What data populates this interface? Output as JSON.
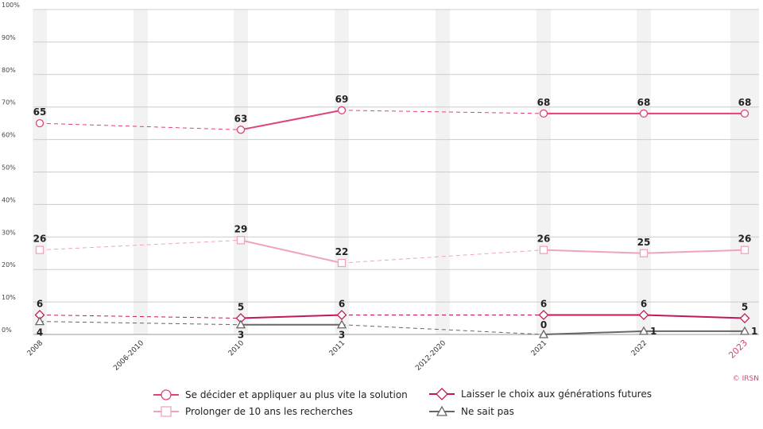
{
  "chart_data": {
    "type": "line",
    "categories": [
      "2008",
      "2006-2010",
      "2010",
      "2011",
      "2012-2020",
      "2021",
      "2022",
      "2023"
    ],
    "highlighted_category": "2023",
    "ylim": [
      0,
      100
    ],
    "yticks": [
      "0%",
      "10%",
      "20%",
      "30%",
      "40%",
      "50%",
      "60%",
      "70%",
      "80%",
      "90%",
      "100%"
    ],
    "grid": true,
    "legend_position": "bottom",
    "series": [
      {
        "name": "Se décider et appliquer au plus vite la solution",
        "color": "#e0407e",
        "marker": "circle",
        "values": [
          65,
          null,
          63,
          69,
          null,
          68,
          68,
          68
        ],
        "labels": [
          "65",
          "",
          "63",
          "69",
          "",
          "68",
          "68",
          "68"
        ]
      },
      {
        "name": "Prolonger de 10 ans les recherches",
        "color": "#f0a3bf",
        "marker": "square",
        "values": [
          26,
          null,
          29,
          22,
          null,
          26,
          25,
          26
        ],
        "labels": [
          "26",
          "",
          "29",
          "22",
          "",
          "26",
          "25",
          "26"
        ]
      },
      {
        "name": "Laisser le choix aux générations futures",
        "color": "#c2185b",
        "marker": "diamond",
        "values": [
          6,
          null,
          5,
          6,
          null,
          6,
          6,
          5
        ],
        "labels": [
          "6",
          "",
          "5",
          "6",
          "",
          "6",
          "6",
          "5"
        ]
      },
      {
        "name": "Ne sait pas",
        "color": "#666666",
        "marker": "triangle",
        "values": [
          4,
          null,
          3,
          3,
          null,
          0,
          1,
          1
        ],
        "labels": [
          "4",
          "",
          "3",
          "3",
          "",
          "0",
          "1",
          "1"
        ]
      }
    ],
    "copyright": "© IRSN"
  }
}
